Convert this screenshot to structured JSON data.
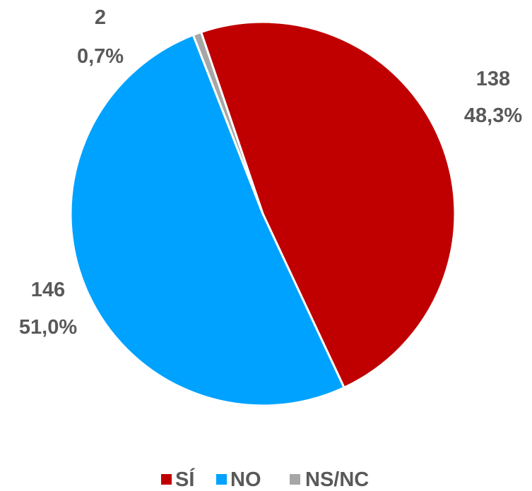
{
  "chart_data": {
    "type": "pie",
    "title": "",
    "slices": [
      {
        "name": "SÍ",
        "value": 138,
        "percent_label": "48,3%",
        "value_label": "138",
        "color": "#C00000"
      },
      {
        "name": "NO",
        "value": 146,
        "percent_label": "51,0%",
        "value_label": "146",
        "color": "#00A2FF"
      },
      {
        "name": "NS/NC",
        "value": 2,
        "percent_label": "0,7%",
        "value_label": "2",
        "color": "#A6A6A6"
      }
    ],
    "legend_position": "bottom"
  }
}
